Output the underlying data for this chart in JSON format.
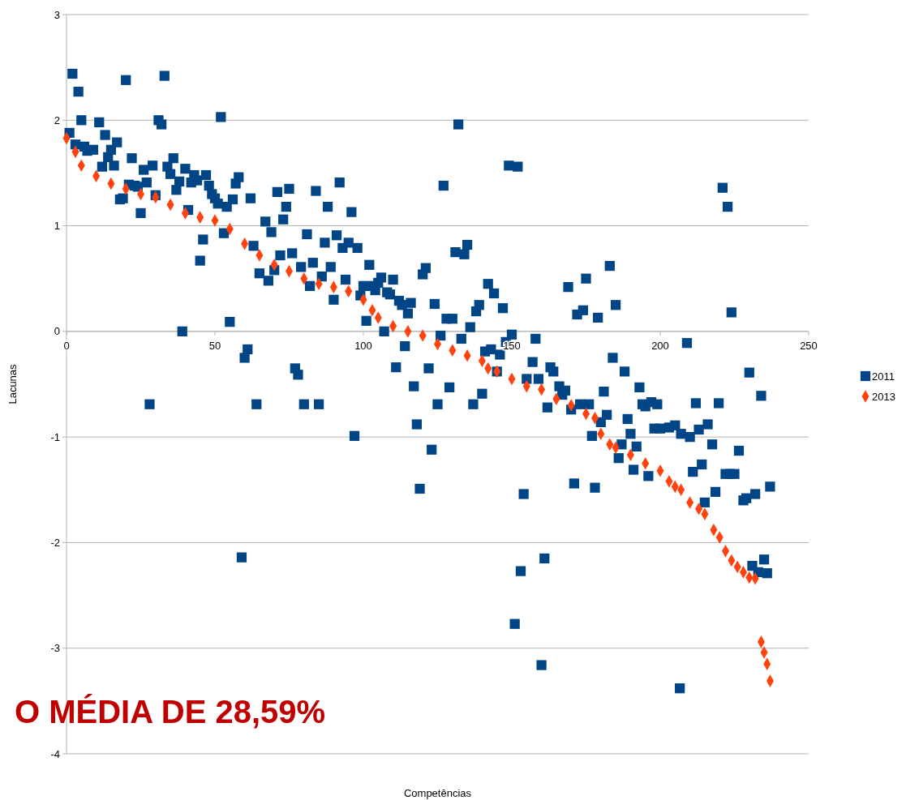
{
  "chart_data": {
    "type": "scatter",
    "xlabel": "Competências",
    "ylabel": "Lacunas",
    "xlim": [
      0,
      250
    ],
    "xticks": [
      0,
      50,
      100,
      150,
      200,
      250
    ],
    "ylim": [
      -4,
      3
    ],
    "yticks": [
      -4,
      -3,
      -2,
      -1,
      0,
      1,
      2,
      3
    ],
    "grid": "y",
    "legend": "right",
    "annotations": [
      "O MÉDIA DE 28,59%"
    ],
    "series": [
      {
        "name": "2011",
        "color": "#004586",
        "marker": "square",
        "x": [
          1,
          2,
          3,
          4,
          5,
          6,
          7,
          9,
          11,
          12,
          13,
          14,
          15,
          16,
          17,
          18,
          19,
          20,
          21,
          22,
          23,
          24,
          25,
          26,
          27,
          28,
          29,
          30,
          31,
          32,
          33,
          34,
          35,
          36,
          37,
          38,
          39,
          40,
          41,
          42,
          43,
          44,
          45,
          46,
          47,
          48,
          49,
          50,
          51,
          52,
          53,
          54,
          55,
          56,
          57,
          58,
          59,
          60,
          61,
          62,
          63,
          64,
          65,
          67,
          68,
          69,
          70,
          71,
          72,
          73,
          74,
          75,
          76,
          77,
          78,
          79,
          80,
          81,
          82,
          83,
          84,
          85,
          86,
          87,
          88,
          89,
          90,
          91,
          92,
          93,
          94,
          95,
          96,
          97,
          98,
          99,
          100,
          101,
          102,
          103,
          104,
          105,
          106,
          107,
          108,
          109,
          110,
          111,
          112,
          113,
          114,
          115,
          116,
          117,
          118,
          119,
          120,
          121,
          122,
          123,
          124,
          125,
          126,
          127,
          128,
          129,
          130,
          131,
          132,
          133,
          134,
          135,
          136,
          137,
          138,
          139,
          140,
          141,
          142,
          143,
          144,
          145,
          146,
          147,
          148,
          149,
          150,
          151,
          152,
          153,
          154,
          155,
          157,
          158,
          159,
          160,
          161,
          162,
          163,
          164,
          166,
          167,
          168,
          169,
          170,
          171,
          172,
          173,
          174,
          175,
          176,
          177,
          178,
          179,
          180,
          181,
          182,
          183,
          184,
          185,
          186,
          187,
          188,
          189,
          190,
          191,
          192,
          193,
          194,
          195,
          196,
          197,
          198,
          199,
          200,
          203,
          205,
          206.6,
          207,
          209,
          210,
          211,
          212,
          213,
          214,
          215,
          216,
          217.5,
          218.6,
          219.7,
          221,
          222,
          222.7,
          224,
          223.5,
          225,
          226.5,
          228,
          229,
          230,
          231,
          232,
          233,
          234,
          235,
          236,
          237
        ],
        "values": [
          1.88,
          2.44,
          1.77,
          2.27,
          2.0,
          1.75,
          1.71,
          1.72,
          1.98,
          1.56,
          1.86,
          1.65,
          1.72,
          1.57,
          1.79,
          1.25,
          1.26,
          2.38,
          1.39,
          1.64,
          1.38,
          1.37,
          1.12,
          1.53,
          1.41,
          -0.69,
          1.57,
          1.29,
          2.0,
          1.96,
          2.42,
          1.56,
          1.49,
          1.64,
          1.34,
          1.42,
          0.0,
          1.54,
          1.15,
          1.41,
          1.48,
          1.43,
          0.67,
          0.87,
          1.48,
          1.38,
          1.3,
          1.26,
          1.21,
          2.03,
          0.93,
          1.18,
          0.09,
          1.25,
          1.4,
          1.46,
          -2.14,
          -0.25,
          -0.17,
          1.26,
          0.81,
          -0.69,
          0.55,
          1.04,
          0.48,
          0.94,
          0.58,
          1.32,
          0.72,
          1.06,
          1.18,
          1.35,
          0.74,
          -0.35,
          -0.41,
          0.61,
          -0.69,
          0.92,
          0.43,
          0.65,
          1.33,
          -0.69,
          0.52,
          0.84,
          1.18,
          0.61,
          0.3,
          0.91,
          1.41,
          0.79,
          0.49,
          0.84,
          1.13,
          -0.99,
          0.79,
          0.34,
          0.43,
          0.1,
          0.63,
          0.43,
          0.39,
          0.46,
          0.51,
          0.0,
          0.37,
          0.35,
          0.49,
          -0.34,
          0.29,
          0.25,
          -0.14,
          0.17,
          0.27,
          -0.52,
          -0.88,
          -1.49,
          0.54,
          0.6,
          -0.35,
          -1.12,
          0.26,
          -0.69,
          -0.04,
          1.38,
          0.12,
          -0.53,
          0.12,
          0.75,
          1.96,
          -0.07,
          0.73,
          0.82,
          0.04,
          -0.69,
          0.19,
          0.25,
          -0.59,
          -0.19,
          0.45,
          -0.17,
          0.36,
          -0.38,
          -0.22,
          0.22,
          -0.1,
          1.57,
          -0.03,
          -2.77,
          1.56,
          -2.27,
          -1.54,
          -0.45,
          -0.29,
          -0.07,
          -0.45,
          -3.16,
          -2.15,
          -0.72,
          -0.34,
          -0.38,
          -0.52,
          -0.6,
          -0.56,
          0.42,
          -0.74,
          -1.44,
          0.16,
          -0.69,
          0.2,
          0.5,
          -0.69,
          -0.99,
          -1.48,
          0.13,
          -0.86,
          -0.57,
          -0.79,
          0.62,
          -0.25,
          0.25,
          -1.2,
          -1.07,
          -0.38,
          -0.83,
          -0.97,
          -1.31,
          -1.09,
          -0.53,
          -0.69,
          -0.71,
          -1.37,
          -0.67,
          -0.92,
          -0.69,
          -0.92,
          -0.91,
          -0.89,
          -3.38,
          -0.97,
          -0.11,
          -1.0,
          -1.33,
          -0.68,
          -0.93,
          -1.26,
          -1.62,
          -0.88,
          -1.07,
          -1.52,
          -0.68,
          1.36,
          -1.35,
          1.18,
          0.18,
          -1.35,
          -1.35,
          -1.13,
          -1.6,
          -1.58,
          -0.39,
          -2.22,
          -1.54,
          -2.28,
          -0.61,
          -2.16,
          -2.29,
          -1.47
        ]
      },
      {
        "name": "2013",
        "color": "#ff420e",
        "marker": "diamond",
        "x": [
          0,
          3,
          5,
          10,
          15,
          20,
          25,
          30,
          35,
          40,
          45,
          50,
          55,
          60,
          65,
          70,
          75,
          80,
          85,
          90,
          95,
          100,
          103,
          105,
          110,
          115,
          120,
          125,
          130,
          135,
          140,
          142,
          145,
          150,
          155,
          160,
          165,
          170,
          175,
          178,
          180,
          183,
          185,
          190,
          195,
          200,
          203,
          205,
          207,
          210,
          213,
          215,
          218,
          220,
          222,
          224,
          226,
          228,
          230,
          232,
          234,
          235,
          236,
          237
        ],
        "values": [
          1.83,
          1.7,
          1.57,
          1.47,
          1.4,
          1.35,
          1.3,
          1.27,
          1.2,
          1.12,
          1.08,
          1.05,
          0.97,
          0.83,
          0.72,
          0.63,
          0.57,
          0.5,
          0.45,
          0.42,
          0.38,
          0.3,
          0.2,
          0.13,
          0.05,
          0.0,
          -0.04,
          -0.12,
          -0.18,
          -0.23,
          -0.28,
          -0.35,
          -0.38,
          -0.45,
          -0.52,
          -0.55,
          -0.64,
          -0.7,
          -0.78,
          -0.82,
          -0.97,
          -1.07,
          -1.1,
          -1.17,
          -1.25,
          -1.32,
          -1.42,
          -1.47,
          -1.5,
          -1.62,
          -1.68,
          -1.73,
          -1.88,
          -1.95,
          -2.08,
          -2.17,
          -2.23,
          -2.28,
          -2.33,
          -2.34,
          -2.94,
          -3.04,
          -3.15,
          -3.31
        ]
      }
    ]
  }
}
